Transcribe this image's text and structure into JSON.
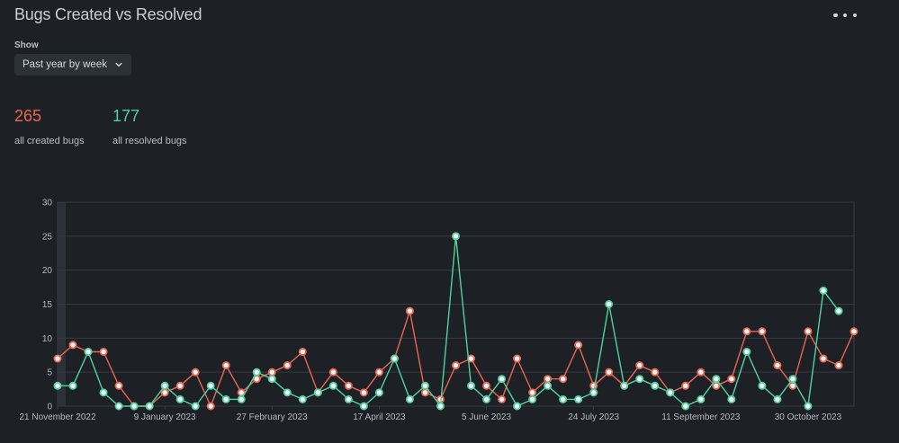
{
  "title": "Bugs Created vs Resolved",
  "more_icon": "more-horizontal-icon",
  "filter": {
    "label": "Show",
    "value": "Past year by week",
    "icon": "chevron-down-icon"
  },
  "stats": {
    "created": {
      "value": "265",
      "label": "all created bugs",
      "color": "#ea6651"
    },
    "resolved": {
      "value": "177",
      "label": "all resolved bugs",
      "color": "#4fd1a0"
    }
  },
  "chart_data": {
    "type": "line",
    "x_tick_labels": [
      "21 November 2022",
      "9 January 2023",
      "27 February 2023",
      "17 April 2023",
      "5 June 2023",
      "24 July 2023",
      "11 September 2023",
      "30 October 2023"
    ],
    "x_tick_positions": [
      0,
      7,
      14,
      21,
      28,
      35,
      42,
      49
    ],
    "ylim": [
      0,
      30
    ],
    "y_ticks": [
      0,
      5,
      10,
      15,
      20,
      25,
      30
    ],
    "grid": true,
    "series": [
      {
        "color": "#ea6651",
        "values": [
          7,
          9,
          8,
          8,
          3,
          0,
          0,
          2,
          3,
          5,
          0,
          6,
          2,
          4,
          5,
          6,
          8,
          2,
          5,
          3,
          2,
          5,
          7,
          14,
          2,
          1,
          6,
          7,
          3,
          1,
          7,
          2,
          4,
          4,
          9,
          3,
          5,
          3,
          6,
          5,
          2,
          3,
          5,
          3,
          4,
          11,
          11,
          6,
          3,
          11,
          7,
          6,
          11
        ]
      },
      {
        "color": "#4fd1a0",
        "values": [
          3,
          3,
          8,
          2,
          0,
          0,
          0,
          3,
          1,
          0,
          3,
          1,
          1,
          5,
          4,
          2,
          1,
          2,
          3,
          1,
          0,
          2,
          7,
          1,
          3,
          0,
          25,
          3,
          1,
          4,
          0,
          1,
          3,
          1,
          1,
          2,
          15,
          3,
          4,
          3,
          2,
          0,
          1,
          4,
          1,
          8,
          3,
          1,
          4,
          0,
          17,
          14
        ]
      }
    ]
  }
}
